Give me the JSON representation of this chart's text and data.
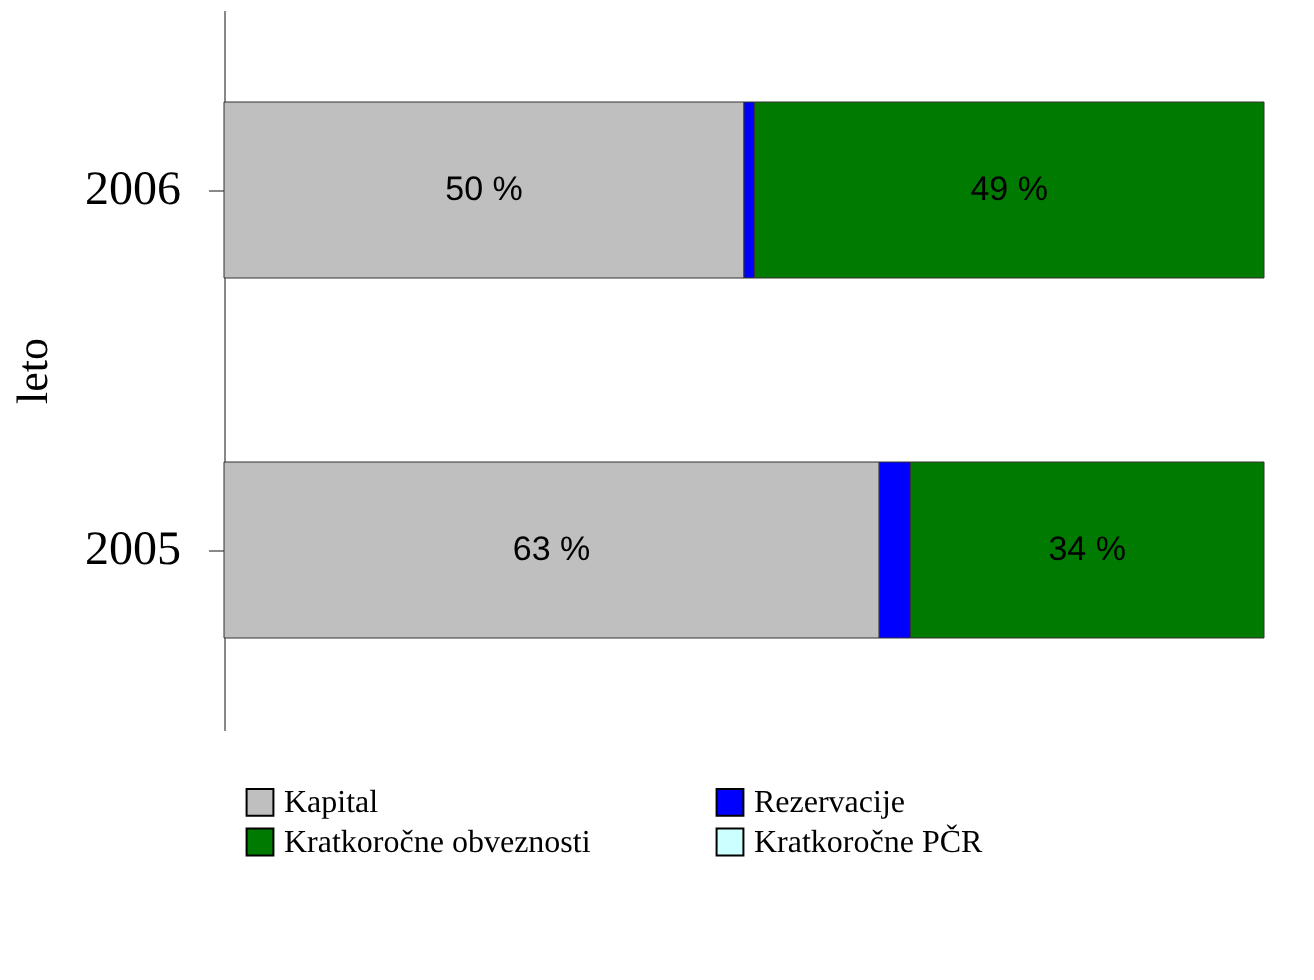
{
  "chart_data": {
    "type": "bar",
    "orientation": "horizontal",
    "stacked": true,
    "xlim": [
      0,
      100
    ],
    "categories": [
      "2006",
      "2005"
    ],
    "ylabel": "leto",
    "legend": "bottom",
    "grid": false,
    "series": [
      {
        "name": "Kapital",
        "color": "#bfbfbf",
        "values": [
          50,
          63
        ],
        "value_labels": [
          "50 %",
          "63 %"
        ]
      },
      {
        "name": "Rezervacije",
        "color": "#0000ff",
        "values": [
          1,
          3
        ]
      },
      {
        "name": "Kratkoročne obveznosti",
        "color": "#007a00",
        "values": [
          49,
          34
        ],
        "value_labels": [
          "49 %",
          "34 %"
        ]
      },
      {
        "name": "Kratkoročne PČR",
        "color": "#ccffff",
        "values": [
          null,
          null
        ]
      }
    ]
  }
}
